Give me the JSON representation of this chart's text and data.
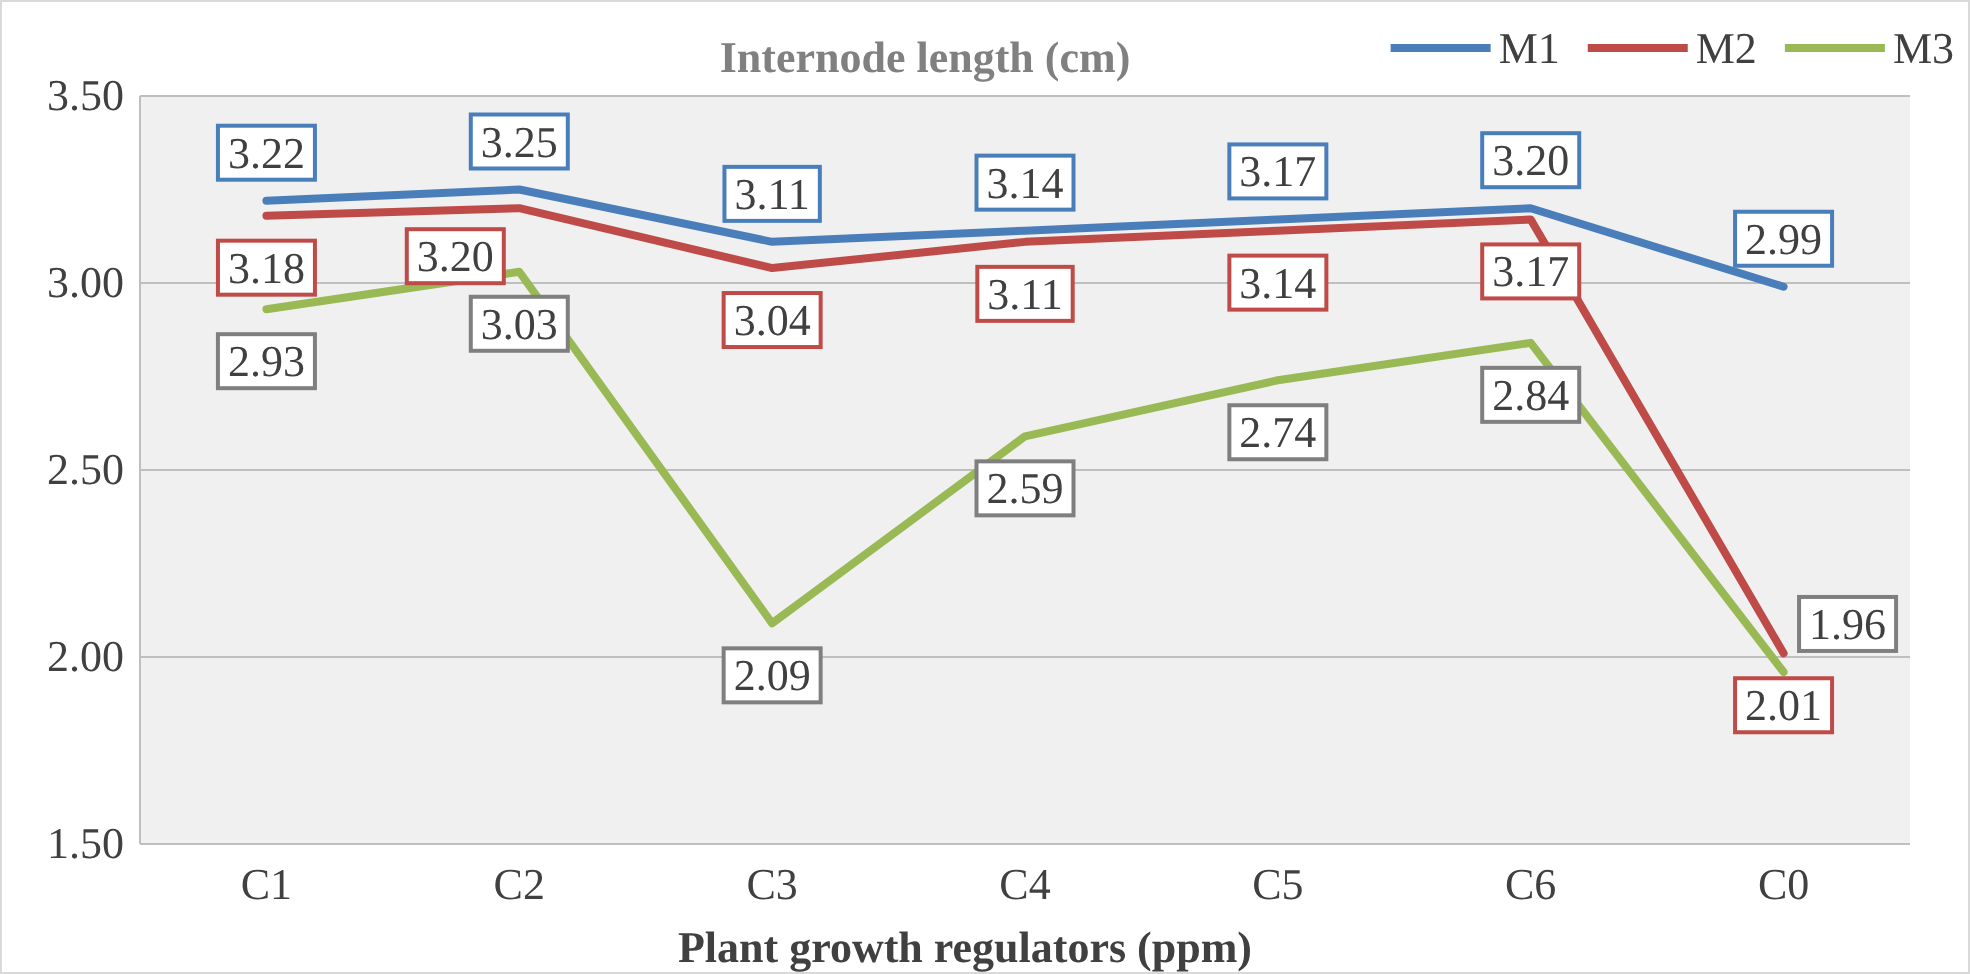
{
  "chart_data": {
    "type": "line",
    "title": "Internode length (cm)",
    "xlabel": "Plant growth regulators (ppm)",
    "categories": [
      "C1",
      "C2",
      "C3",
      "C4",
      "C5",
      "C6",
      "C0"
    ],
    "series": [
      {
        "name": "M1",
        "color": "#4a7ebb",
        "values": [
          3.22,
          3.25,
          3.11,
          3.14,
          3.17,
          3.2,
          2.99
        ],
        "value_labels": [
          "3.22",
          "3.25",
          "3.11",
          "3.14",
          "3.17",
          "3.20",
          "2.99"
        ]
      },
      {
        "name": "M2",
        "color": "#be4b48",
        "values": [
          3.18,
          3.2,
          3.04,
          3.11,
          3.14,
          3.17,
          2.01
        ],
        "value_labels": [
          "3.18",
          "3.20",
          "3.04",
          "3.11",
          "3.14",
          "3.17",
          "2.01"
        ]
      },
      {
        "name": "M3",
        "color": "#98b954",
        "values": [
          2.93,
          3.03,
          2.09,
          2.59,
          2.74,
          2.84,
          1.96
        ],
        "value_labels": [
          "2.93",
          "3.03",
          "2.09",
          "2.59",
          "2.74",
          "2.84",
          "1.96"
        ]
      }
    ],
    "ylim": [
      1.5,
      3.5
    ],
    "yticks": [
      {
        "value": 1.5,
        "label": "1.50"
      },
      {
        "value": 2,
        "label": "2.00"
      },
      {
        "value": 2.5,
        "label": "2.50"
      },
      {
        "value": 3,
        "label": "3.00"
      },
      {
        "value": 3.5,
        "label": "3.50"
      }
    ],
    "grid": "y",
    "legend": "top right",
    "marker": "none",
    "line_style": "solid"
  }
}
